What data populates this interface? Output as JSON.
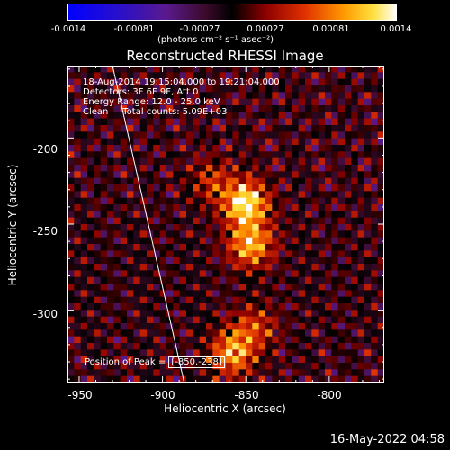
{
  "colorbar": {
    "ticks": [
      "-0.0014",
      "-0.00081",
      "-0.00027",
      "0.00027",
      "0.00081",
      "0.0014"
    ],
    "units": "(photons cm⁻² s⁻¹ asec⁻²)",
    "min": -0.0014,
    "max": 0.0014
  },
  "chart_data": {
    "type": "heatmap",
    "title": "Reconstructed RHESSI Image",
    "xlabel": "Heliocentric X (arcsec)",
    "ylabel": "Heliocentric Y (arcsec)",
    "xlim": [
      -957,
      -767
    ],
    "ylim": [
      -342,
      -158
    ],
    "xticks": [
      -950,
      -900,
      -850,
      -800
    ],
    "yticks": [
      -200,
      -250,
      -300
    ],
    "info_lines": [
      "18-Aug-2014 19:15:04.000 to 19:21:04.000",
      "Detectors: 3F 6F 9F, Att 0",
      "Energy Range: 12.0 - 25.0 keV",
      "Clean     Total counts: 5.09E+03"
    ],
    "peak_label": "Position of Peak = ",
    "peak_value": "[-850,-238]",
    "peak_position": [
      -850,
      -238
    ],
    "limb_line": [
      [
        -930,
        -158
      ],
      [
        -887,
        -342
      ]
    ],
    "sources": [
      {
        "x": -850,
        "y": -238,
        "value": 0.0014
      },
      {
        "x": -847,
        "y": -262,
        "value": 0.0011
      },
      {
        "x": -858,
        "y": -325,
        "value": 0.001
      },
      {
        "x": -845,
        "y": -310,
        "value": 0.0006
      },
      {
        "x": -870,
        "y": -225,
        "value": 0.0005
      }
    ]
  },
  "timestamp": "16-May-2022 04:58"
}
